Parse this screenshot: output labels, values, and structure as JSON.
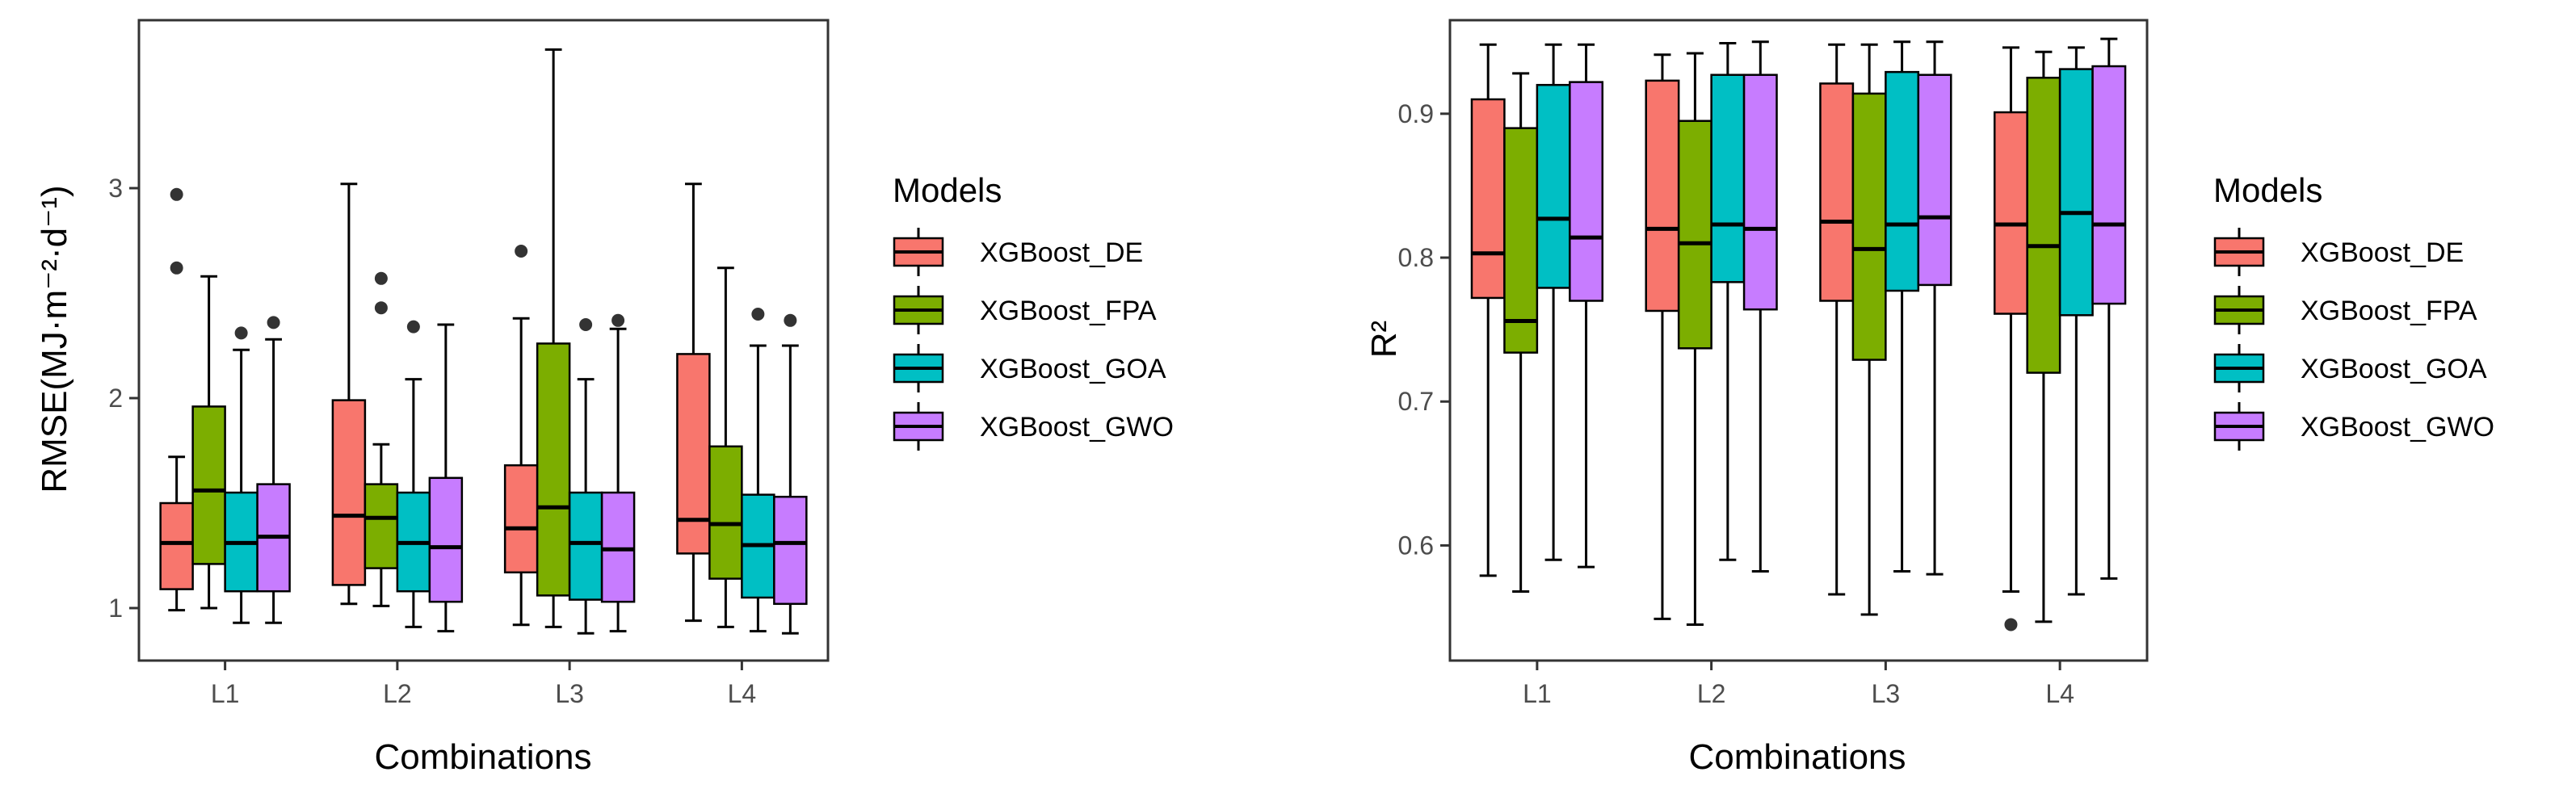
{
  "chart_data": [
    {
      "type": "boxplot",
      "xlabel": "Combinations",
      "ylabel": "RMSE(MJ·m⁻²·d⁻¹)",
      "ylim": [
        0.75,
        3.8
      ],
      "yticks": [
        1,
        2,
        3
      ],
      "ytick_labels": [
        "1",
        "2",
        "3"
      ],
      "categories": [
        "L1",
        "L2",
        "L3",
        "L4"
      ],
      "legend": {
        "title": "Models",
        "placement": "right"
      },
      "series": [
        {
          "name": "XGBoost_DE",
          "color": "#F8766D",
          "boxes": [
            {
              "category": "L1",
              "whisker_low": 0.99,
              "q1": 1.09,
              "median": 1.31,
              "q3": 1.5,
              "whisker_high": 1.72,
              "outliers": [
                2.62,
                2.97
              ]
            },
            {
              "category": "L2",
              "whisker_low": 1.02,
              "q1": 1.11,
              "median": 1.44,
              "q3": 1.99,
              "whisker_high": 3.02,
              "outliers": []
            },
            {
              "category": "L3",
              "whisker_low": 0.92,
              "q1": 1.17,
              "median": 1.38,
              "q3": 1.68,
              "whisker_high": 2.38,
              "outliers": [
                2.7
              ]
            },
            {
              "category": "L4",
              "whisker_low": 0.94,
              "q1": 1.26,
              "median": 1.42,
              "q3": 2.21,
              "whisker_high": 3.02,
              "outliers": []
            }
          ]
        },
        {
          "name": "XGBoost_FPA",
          "color": "#7CAE00",
          "boxes": [
            {
              "category": "L1",
              "whisker_low": 1.0,
              "q1": 1.21,
              "median": 1.56,
              "q3": 1.96,
              "whisker_high": 2.58,
              "outliers": []
            },
            {
              "category": "L2",
              "whisker_low": 1.01,
              "q1": 1.19,
              "median": 1.43,
              "q3": 1.59,
              "whisker_high": 1.78,
              "outliers": [
                2.43,
                2.57
              ]
            },
            {
              "category": "L3",
              "whisker_low": 0.91,
              "q1": 1.06,
              "median": 1.48,
              "q3": 2.26,
              "whisker_high": 3.66,
              "outliers": []
            },
            {
              "category": "L4",
              "whisker_low": 0.91,
              "q1": 1.14,
              "median": 1.4,
              "q3": 1.77,
              "whisker_high": 2.62,
              "outliers": []
            }
          ]
        },
        {
          "name": "XGBoost_GOA",
          "color": "#00BFC4",
          "boxes": [
            {
              "category": "L1",
              "whisker_low": 0.93,
              "q1": 1.08,
              "median": 1.31,
              "q3": 1.55,
              "whisker_high": 2.23,
              "outliers": [
                2.31
              ]
            },
            {
              "category": "L2",
              "whisker_low": 0.91,
              "q1": 1.08,
              "median": 1.31,
              "q3": 1.55,
              "whisker_high": 2.09,
              "outliers": [
                2.34
              ]
            },
            {
              "category": "L3",
              "whisker_low": 0.88,
              "q1": 1.04,
              "median": 1.31,
              "q3": 1.55,
              "whisker_high": 2.09,
              "outliers": [
                2.35
              ]
            },
            {
              "category": "L4",
              "whisker_low": 0.89,
              "q1": 1.05,
              "median": 1.3,
              "q3": 1.54,
              "whisker_high": 2.25,
              "outliers": [
                2.4
              ]
            }
          ]
        },
        {
          "name": "XGBoost_GWO",
          "color": "#C77CFF",
          "boxes": [
            {
              "category": "L1",
              "whisker_low": 0.93,
              "q1": 1.08,
              "median": 1.34,
              "q3": 1.59,
              "whisker_high": 2.28,
              "outliers": [
                2.36
              ]
            },
            {
              "category": "L2",
              "whisker_low": 0.89,
              "q1": 1.03,
              "median": 1.29,
              "q3": 1.62,
              "whisker_high": 2.35,
              "outliers": []
            },
            {
              "category": "L3",
              "whisker_low": 0.89,
              "q1": 1.03,
              "median": 1.28,
              "q3": 1.55,
              "whisker_high": 2.33,
              "outliers": [
                2.37
              ]
            },
            {
              "category": "L4",
              "whisker_low": 0.88,
              "q1": 1.02,
              "median": 1.31,
              "q3": 1.53,
              "whisker_high": 2.25,
              "outliers": [
                2.37
              ]
            }
          ]
        }
      ]
    },
    {
      "type": "boxplot",
      "xlabel": "Combinations",
      "ylabel": "R²",
      "ylim": [
        0.52,
        0.965
      ],
      "yticks": [
        0.6,
        0.7,
        0.8,
        0.9
      ],
      "ytick_labels": [
        "0.6",
        "0.7",
        "0.8",
        "0.9"
      ],
      "categories": [
        "L1",
        "L2",
        "L3",
        "L4"
      ],
      "legend": {
        "title": "Models",
        "placement": "right"
      },
      "series": [
        {
          "name": "XGBoost_DE",
          "color": "#F8766D",
          "boxes": [
            {
              "category": "L1",
              "whisker_low": 0.579,
              "q1": 0.772,
              "median": 0.803,
              "q3": 0.91,
              "whisker_high": 0.948,
              "outliers": []
            },
            {
              "category": "L2",
              "whisker_low": 0.549,
              "q1": 0.763,
              "median": 0.82,
              "q3": 0.923,
              "whisker_high": 0.941,
              "outliers": []
            },
            {
              "category": "L3",
              "whisker_low": 0.566,
              "q1": 0.77,
              "median": 0.825,
              "q3": 0.921,
              "whisker_high": 0.948,
              "outliers": []
            },
            {
              "category": "L4",
              "whisker_low": 0.568,
              "q1": 0.761,
              "median": 0.823,
              "q3": 0.901,
              "whisker_high": 0.946,
              "outliers": [
                0.545
              ]
            }
          ]
        },
        {
          "name": "XGBoost_FPA",
          "color": "#7CAE00",
          "boxes": [
            {
              "category": "L1",
              "whisker_low": 0.568,
              "q1": 0.734,
              "median": 0.756,
              "q3": 0.89,
              "whisker_high": 0.928,
              "outliers": []
            },
            {
              "category": "L2",
              "whisker_low": 0.545,
              "q1": 0.737,
              "median": 0.81,
              "q3": 0.895,
              "whisker_high": 0.942,
              "outliers": []
            },
            {
              "category": "L3",
              "whisker_low": 0.552,
              "q1": 0.729,
              "median": 0.806,
              "q3": 0.914,
              "whisker_high": 0.948,
              "outliers": []
            },
            {
              "category": "L4",
              "whisker_low": 0.547,
              "q1": 0.72,
              "median": 0.808,
              "q3": 0.925,
              "whisker_high": 0.943,
              "outliers": []
            }
          ]
        },
        {
          "name": "XGBoost_GOA",
          "color": "#00BFC4",
          "boxes": [
            {
              "category": "L1",
              "whisker_low": 0.59,
              "q1": 0.779,
              "median": 0.827,
              "q3": 0.92,
              "whisker_high": 0.948,
              "outliers": []
            },
            {
              "category": "L2",
              "whisker_low": 0.59,
              "q1": 0.783,
              "median": 0.823,
              "q3": 0.927,
              "whisker_high": 0.949,
              "outliers": []
            },
            {
              "category": "L3",
              "whisker_low": 0.582,
              "q1": 0.777,
              "median": 0.823,
              "q3": 0.929,
              "whisker_high": 0.95,
              "outliers": []
            },
            {
              "category": "L4",
              "whisker_low": 0.566,
              "q1": 0.76,
              "median": 0.831,
              "q3": 0.931,
              "whisker_high": 0.946,
              "outliers": []
            }
          ]
        },
        {
          "name": "XGBoost_GWO",
          "color": "#C77CFF",
          "boxes": [
            {
              "category": "L1",
              "whisker_low": 0.585,
              "q1": 0.77,
              "median": 0.814,
              "q3": 0.922,
              "whisker_high": 0.948,
              "outliers": []
            },
            {
              "category": "L2",
              "whisker_low": 0.582,
              "q1": 0.764,
              "median": 0.82,
              "q3": 0.927,
              "whisker_high": 0.95,
              "outliers": []
            },
            {
              "category": "L3",
              "whisker_low": 0.58,
              "q1": 0.781,
              "median": 0.828,
              "q3": 0.927,
              "whisker_high": 0.95,
              "outliers": []
            },
            {
              "category": "L4",
              "whisker_low": 0.577,
              "q1": 0.768,
              "median": 0.823,
              "q3": 0.933,
              "whisker_high": 0.952,
              "outliers": []
            }
          ]
        }
      ]
    }
  ]
}
